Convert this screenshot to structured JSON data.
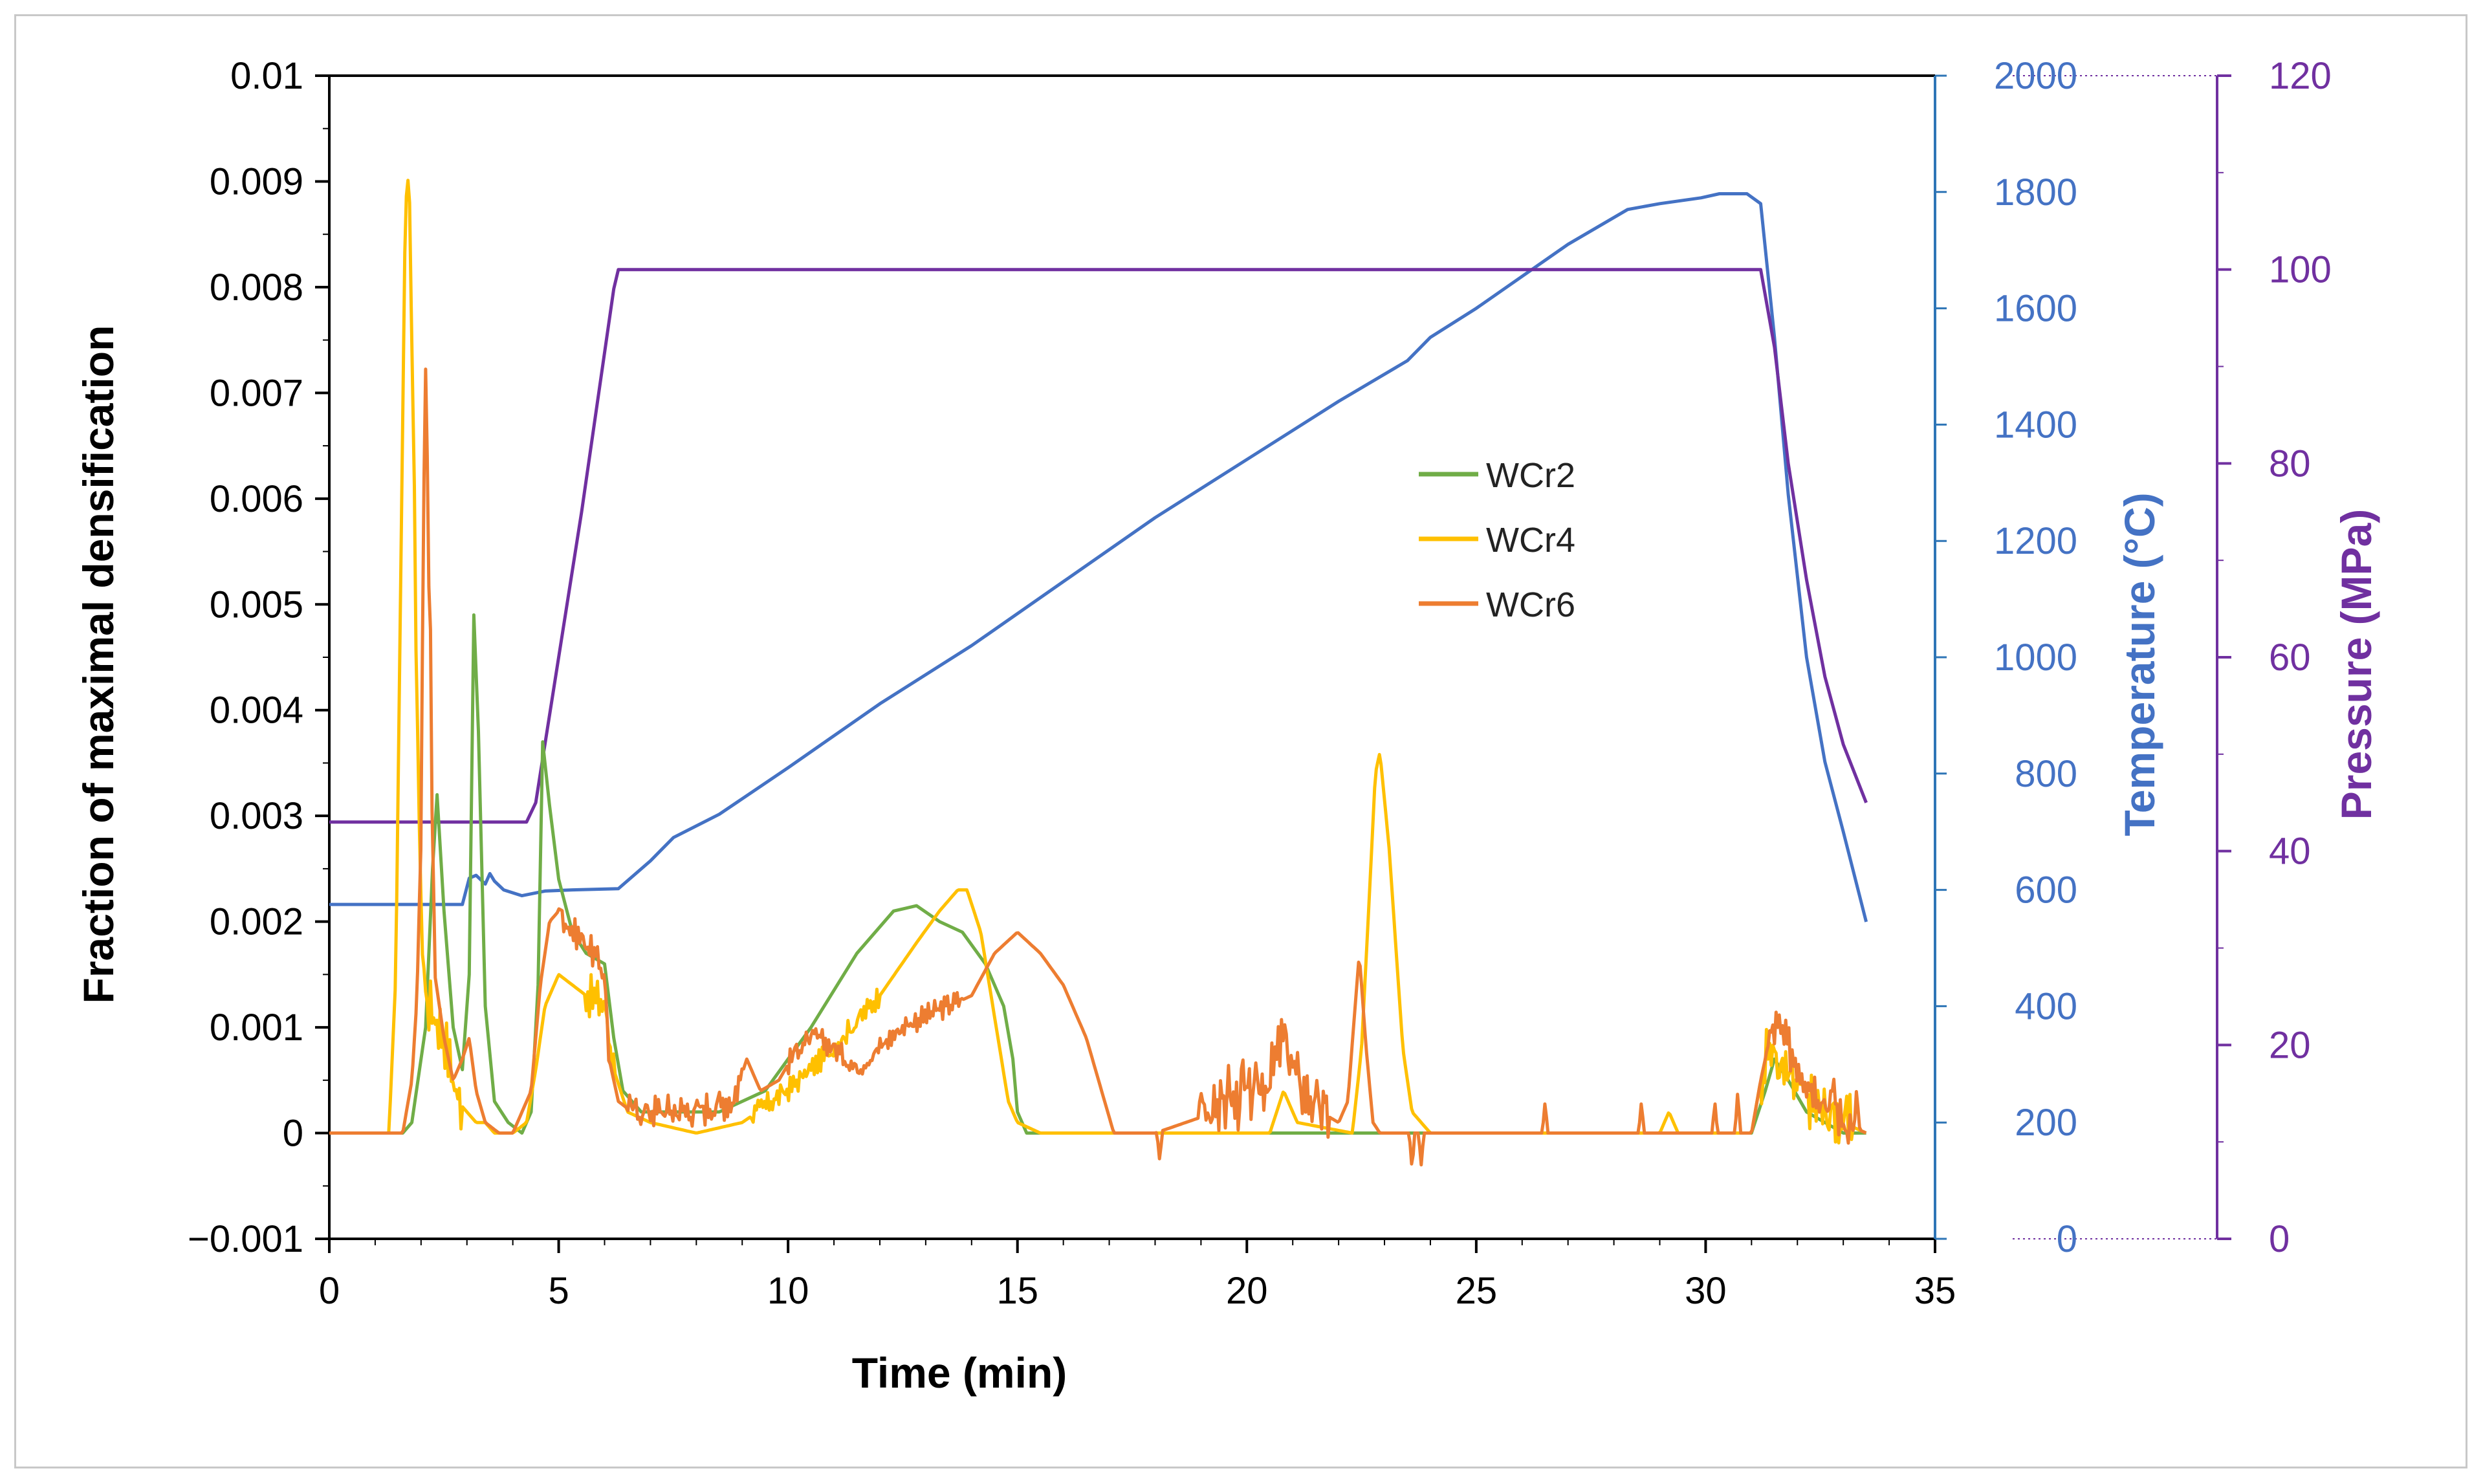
{
  "chart_data": {
    "type": "line",
    "xlabel": "Time (min)",
    "ylabel": "Fraction of maximal densification",
    "y2label": "Temperature (°C)",
    "y3label": "Pressure (MPa)",
    "xlim": [
      0,
      35
    ],
    "ylim": [
      -0.001,
      0.01
    ],
    "y2lim": [
      0,
      2000
    ],
    "y3lim": [
      0,
      120
    ],
    "xticks": [
      "0",
      "5",
      "10",
      "15",
      "20",
      "25",
      "30",
      "35"
    ],
    "yticks": [
      "−0.001",
      "0",
      "0.001",
      "0.002",
      "0.003",
      "0.004",
      "0.005",
      "0.006",
      "0.007",
      "0.008",
      "0.009",
      "0.01"
    ],
    "y2ticks": [
      "0",
      "200",
      "400",
      "600",
      "800",
      "1000",
      "1200",
      "1400",
      "1600",
      "1800",
      "2000"
    ],
    "y3ticks": [
      "0",
      "20",
      "40",
      "60",
      "80",
      "100",
      "120"
    ],
    "legend_position": "center",
    "colors": {
      "WCr2": "#70ad47",
      "WCr4": "#ffc000",
      "WCr6": "#ed7d31",
      "temperature": "#4472c4",
      "pressure": "#7030a0",
      "temp_axis": "#2e75b6",
      "pressure_axis": "#7030a0"
    },
    "series": [
      {
        "name": "WCr2",
        "axis": "left",
        "color": "#70ad47",
        "x": [
          0,
          1.6,
          1.8,
          2.1,
          2.25,
          2.35,
          2.5,
          2.7,
          2.9,
          3.05,
          3.15,
          3.25,
          3.4,
          3.6,
          3.9,
          4.2,
          4.4,
          4.55,
          4.65,
          4.8,
          5.0,
          5.3,
          5.6,
          6.0,
          6.2,
          6.4,
          6.8,
          7.5,
          8.5,
          9.5,
          10.5,
          11.5,
          12.3,
          12.8,
          13.3,
          13.8,
          14.3,
          14.7,
          14.9,
          15.0,
          15.2,
          17,
          20,
          25,
          31,
          31.3,
          31.5,
          31.8,
          32.2,
          32.6,
          33.0,
          33.5
        ],
        "y": [
          0,
          0,
          0.0001,
          0.001,
          0.0025,
          0.0032,
          0.0021,
          0.001,
          0.0006,
          0.0015,
          0.0049,
          0.0038,
          0.0012,
          0.0003,
          0.0001,
          0,
          0.0002,
          0.0014,
          0.0037,
          0.0031,
          0.0024,
          0.0019,
          0.0017,
          0.0016,
          0.0009,
          0.0004,
          0.0002,
          0.0002,
          0.0002,
          0.0004,
          0.001,
          0.0017,
          0.0021,
          0.00215,
          0.002,
          0.0019,
          0.0016,
          0.0012,
          0.0007,
          0.0002,
          0,
          0,
          0,
          0,
          0,
          0.0004,
          0.0007,
          0.0005,
          0.0002,
          0.0001,
          0,
          0
        ]
      },
      {
        "name": "WCr4",
        "axis": "left",
        "color": "#ffc000",
        "x": [
          0,
          1.3,
          1.45,
          1.55,
          1.65,
          1.7,
          1.75,
          1.85,
          1.95,
          2.05,
          2.15,
          2.3,
          2.5,
          2.8,
          3.0,
          3.2,
          3.4,
          3.6,
          4.0,
          4.3,
          4.5,
          4.7,
          5.0,
          5.3,
          5.6,
          6.0,
          6.2,
          6.5,
          7.0,
          8.0,
          9.0,
          10.0,
          11.0,
          12.0,
          12.8,
          13.3,
          13.7,
          13.9,
          14.2,
          14.5,
          14.8,
          15.0,
          15.5,
          17,
          20.5,
          20.8,
          21.1,
          22.3,
          22.5,
          22.7,
          22.8,
          22.9,
          23.1,
          23.4,
          23.6,
          24.0,
          25,
          29,
          29.2,
          29.4,
          31,
          31.2,
          31.4,
          31.6,
          32.0,
          32.5,
          33.0,
          33.5
        ],
        "y": [
          0,
          0,
          0.0015,
          0.005,
          0.0085,
          0.0091,
          0.0088,
          0.006,
          0.003,
          0.0015,
          0.0012,
          0.0011,
          0.0009,
          0.0003,
          0.0002,
          0.0001,
          0.0001,
          0,
          0,
          0.0001,
          0.0006,
          0.0012,
          0.0015,
          0.0014,
          0.0013,
          0.0012,
          0.0006,
          0.0002,
          0.0001,
          0,
          0.0001,
          0.0004,
          0.0008,
          0.0013,
          0.0018,
          0.0021,
          0.0023,
          0.0023,
          0.0019,
          0.0011,
          0.0003,
          0.0001,
          0,
          0,
          0,
          0.0004,
          0.0001,
          0,
          0.0008,
          0.0025,
          0.0034,
          0.0036,
          0.0027,
          0.0008,
          0.0002,
          0,
          0,
          0,
          0.0002,
          0,
          0,
          0.0005,
          0.0008,
          0.0006,
          0.0004,
          0.0002,
          0.0001,
          0
        ],
        "noise": [
          [
            1.8,
            2.9,
            0.0002
          ],
          [
            5.6,
            6.2,
            0.00015
          ],
          [
            9.2,
            12.0,
            8e-05
          ],
          [
            31.2,
            33.2,
            0.0002
          ]
        ]
      },
      {
        "name": "WCr6",
        "axis": "left",
        "color": "#ed7d31",
        "x": [
          0,
          1.6,
          1.8,
          1.9,
          2.0,
          2.05,
          2.1,
          2.2,
          2.3,
          2.5,
          2.7,
          2.9,
          3.05,
          3.2,
          3.4,
          3.7,
          4.0,
          4.4,
          4.6,
          4.8,
          5.0,
          5.3,
          5.6,
          6.0,
          6.1,
          6.3,
          6.6,
          7.0,
          8.0,
          8.8,
          9.1,
          9.4,
          9.8,
          10.2,
          10.6,
          11.0,
          11.5,
          12.0,
          12.5,
          13.0,
          13.5,
          14.0,
          14.5,
          15.0,
          15.5,
          16.0,
          16.5,
          16.9,
          17.1,
          18,
          20.0,
          20.5,
          20.8,
          21.0,
          21.2,
          21.6,
          22.0,
          22.2,
          22.45,
          22.6,
          22.75,
          22.9,
          23.2,
          23.5,
          24,
          31,
          31.2,
          31.4,
          31.55,
          31.8,
          32.2,
          32.6,
          33.0,
          33.5
        ],
        "y": [
          0,
          0,
          0.0005,
          0.0012,
          0.0028,
          0.0058,
          0.0071,
          0.0046,
          0.0015,
          0.0009,
          0.0005,
          0.0007,
          0.0009,
          0.0004,
          0.0001,
          0,
          0,
          0.0004,
          0.0014,
          0.002,
          0.0021,
          0.0019,
          0.0018,
          0.0015,
          0.0007,
          0.0003,
          0.0002,
          0.0002,
          0.0002,
          0.0003,
          0.0007,
          0.0004,
          0.0005,
          0.0008,
          0.0009,
          0.0008,
          0.0006,
          0.0008,
          0.001,
          0.0011,
          0.0012,
          0.0013,
          0.0017,
          0.0019,
          0.0017,
          0.0014,
          0.0009,
          0.0003,
          0,
          0,
          0.0003,
          0.0005,
          0.0009,
          0.0006,
          0.0004,
          0.0002,
          0.0001,
          0.0003,
          0.0017,
          0.0008,
          0.0001,
          0,
          0,
          0,
          0,
          0,
          0.0005,
          0.0009,
          0.001,
          0.0008,
          0.0005,
          0.0003,
          0.0001,
          0
        ],
        "noise": [
          [
            1.9,
            2.3,
            0.0003
          ],
          [
            5.0,
            6.1,
            0.0001
          ],
          [
            6.5,
            9.0,
            0.00012
          ],
          [
            10.0,
            13.8,
            8e-05
          ],
          [
            19.0,
            21.8,
            0.0002
          ],
          [
            31.3,
            33.3,
            0.00015
          ]
        ],
        "spikes": [
          [
            18.1,
            -0.00028
          ],
          [
            19.0,
            0.0003
          ],
          [
            19.3,
            0.0003
          ],
          [
            19.6,
            0.0003
          ],
          [
            19.9,
            0.0003
          ],
          [
            23.6,
            -0.00035
          ],
          [
            23.8,
            -0.0003
          ],
          [
            26.5,
            0.0003
          ],
          [
            28.6,
            0.0003
          ],
          [
            30.2,
            0.0003
          ],
          [
            30.7,
            0.0004
          ],
          [
            32.8,
            0.0003
          ],
          [
            33.3,
            0.0003
          ]
        ]
      },
      {
        "name": "Temperature",
        "axis": "right-temperature",
        "color": "#4472c4",
        "x": [
          0,
          2.9,
          3.05,
          3.2,
          3.4,
          3.5,
          3.6,
          3.8,
          4.2,
          4.7,
          5.3,
          6.3,
          7.0,
          7.5,
          8.5,
          10,
          12,
          14,
          16,
          18,
          20,
          22,
          23.5,
          24.0,
          25,
          27,
          28.3,
          29,
          29.9,
          30.3,
          30.9,
          31.2,
          31.5,
          31.8,
          32.2,
          32.6,
          33.0,
          33.5
        ],
        "y": [
          575,
          575,
          620,
          625,
          610,
          628,
          615,
          600,
          590,
          598,
          600,
          602,
          650,
          690,
          730,
          810,
          920,
          1020,
          1130,
          1240,
          1340,
          1440,
          1510,
          1550,
          1600,
          1710,
          1770,
          1780,
          1790,
          1797,
          1797,
          1780,
          1550,
          1280,
          1000,
          820,
          700,
          545
        ]
      },
      {
        "name": "Pressure",
        "axis": "right-pressure",
        "color": "#7030a0",
        "x": [
          0,
          4.3,
          4.5,
          5.5,
          6.2,
          6.3,
          31.0,
          31.2,
          31.5,
          31.8,
          32.2,
          32.6,
          33.0,
          33.5
        ],
        "y": [
          43,
          43,
          45,
          75,
          98,
          100,
          100,
          100,
          92,
          80,
          68,
          58,
          51,
          45
        ]
      }
    ]
  }
}
